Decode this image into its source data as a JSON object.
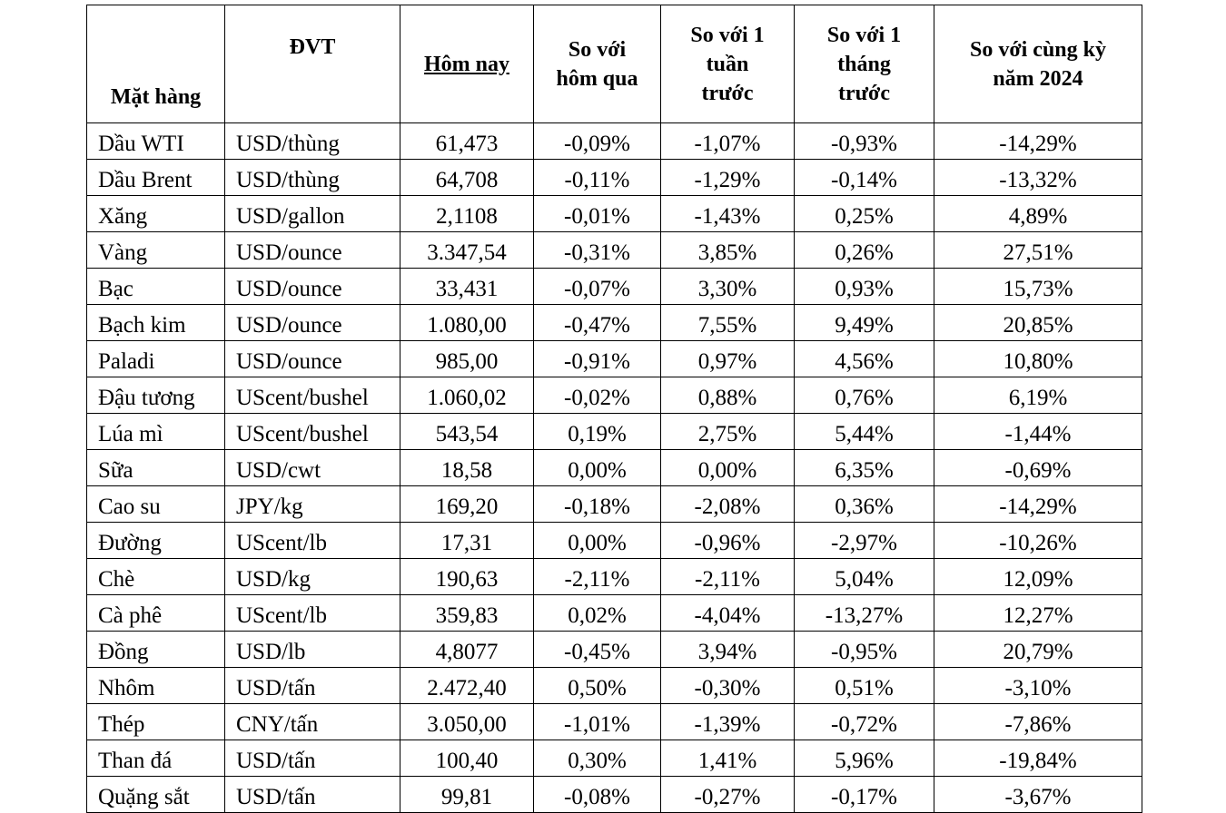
{
  "table": {
    "header": [
      [
        "Mặt hàng"
      ],
      [
        "ĐVT"
      ],
      [
        "Hôm nay"
      ],
      [
        "So với",
        "hôm qua"
      ],
      [
        "So với 1",
        "tuần",
        "trước"
      ],
      [
        "So với 1",
        "tháng",
        "trước"
      ],
      [
        "So với cùng kỳ",
        "năm 2024"
      ]
    ],
    "rows": [
      [
        "Dầu WTI",
        "USD/thùng",
        "61,473",
        "-0,09%",
        "-1,07%",
        "-0,93%",
        "-14,29%"
      ],
      [
        "Dầu Brent",
        "USD/thùng",
        "64,708",
        "-0,11%",
        "-1,29%",
        "-0,14%",
        "-13,32%"
      ],
      [
        "Xăng",
        "USD/gallon",
        "2,1108",
        "-0,01%",
        "-1,43%",
        "0,25%",
        "4,89%"
      ],
      [
        "Vàng",
        "USD/ounce",
        "3.347,54",
        "-0,31%",
        "3,85%",
        "0,26%",
        "27,51%"
      ],
      [
        "Bạc",
        "USD/ounce",
        "33,431",
        "-0,07%",
        "3,30%",
        "0,93%",
        "15,73%"
      ],
      [
        "Bạch kim",
        "USD/ounce",
        "1.080,00",
        "-0,47%",
        "7,55%",
        "9,49%",
        "20,85%"
      ],
      [
        "Paladi",
        "USD/ounce",
        "985,00",
        "-0,91%",
        "0,97%",
        "4,56%",
        "10,80%"
      ],
      [
        "Đậu tương",
        "UScent/bushel",
        "1.060,02",
        "-0,02%",
        "0,88%",
        "0,76%",
        "6,19%"
      ],
      [
        "Lúa mì",
        "UScent/bushel",
        "543,54",
        "0,19%",
        "2,75%",
        "5,44%",
        "-1,44%"
      ],
      [
        "Sữa",
        "USD/cwt",
        "18,58",
        "0,00%",
        "0,00%",
        "6,35%",
        "-0,69%"
      ],
      [
        "Cao su",
        "JPY/kg",
        "169,20",
        "-0,18%",
        "-2,08%",
        "0,36%",
        "-14,29%"
      ],
      [
        "Đường",
        "UScent/lb",
        "17,31",
        "0,00%",
        "-0,96%",
        "-2,97%",
        "-10,26%"
      ],
      [
        "Chè",
        "USD/kg",
        "190,63",
        "-2,11%",
        "-2,11%",
        "5,04%",
        "12,09%"
      ],
      [
        "Cà phê",
        "UScent/lb",
        "359,83",
        "0,02%",
        "-4,04%",
        "-13,27%",
        "12,27%"
      ],
      [
        "Đồng",
        "USD/lb",
        "4,8077",
        "-0,45%",
        "3,94%",
        "-0,95%",
        "20,79%"
      ],
      [
        "Nhôm",
        "USD/tấn",
        "2.472,40",
        "0,50%",
        "-0,30%",
        "0,51%",
        "-3,10%"
      ],
      [
        "Thép",
        "CNY/tấn",
        "3.050,00",
        "-1,01%",
        "-1,39%",
        "-0,72%",
        "-7,86%"
      ],
      [
        "Than đá",
        "USD/tấn",
        "100,40",
        "0,30%",
        "1,41%",
        "5,96%",
        "-19,84%"
      ],
      [
        "Quặng sắt",
        "USD/tấn",
        "99,81",
        "-0,08%",
        "-0,27%",
        "-0,17%",
        "-3,67%"
      ]
    ]
  }
}
